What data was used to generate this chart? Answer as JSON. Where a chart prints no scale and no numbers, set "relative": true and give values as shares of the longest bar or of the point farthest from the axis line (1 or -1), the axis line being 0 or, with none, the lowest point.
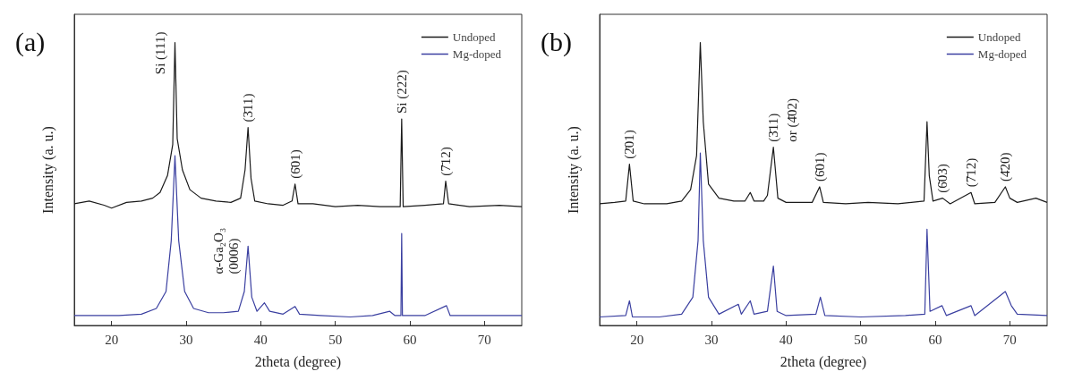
{
  "chart_data": [
    {
      "type": "line",
      "title": "(a)",
      "xlabel": "2theta (degree)",
      "ylabel": "Intensity (a. u.)",
      "xlim": [
        15,
        75
      ],
      "xticks": [
        20,
        30,
        40,
        50,
        60,
        70
      ],
      "relative": true,
      "legend": "top right",
      "marker": "none",
      "grid": false,
      "series": [
        {
          "name": "Undoped",
          "color": "#1a1a1a",
          "x": [
            15,
            17,
            19,
            20,
            22,
            24,
            25.5,
            26.5,
            27.5,
            28.2,
            28.5,
            28.8,
            29.5,
            30.5,
            32,
            34,
            36,
            37.3,
            37.9,
            38.3,
            38.7,
            39.2,
            41,
            43,
            44.2,
            44.6,
            45,
            47,
            50,
            53,
            56,
            58.7,
            58.9,
            59.1,
            62,
            64.5,
            64.8,
            65.2,
            68,
            72,
            75
          ],
          "values": [
            0.43,
            0.44,
            0.425,
            0.415,
            0.435,
            0.44,
            0.45,
            0.47,
            0.53,
            0.64,
            1.0,
            0.66,
            0.55,
            0.48,
            0.45,
            0.44,
            0.435,
            0.45,
            0.55,
            0.7,
            0.52,
            0.44,
            0.43,
            0.425,
            0.44,
            0.5,
            0.43,
            0.43,
            0.42,
            0.425,
            0.42,
            0.42,
            0.73,
            0.42,
            0.425,
            0.43,
            0.51,
            0.43,
            0.42,
            0.425,
            0.42
          ]
        },
        {
          "name": "Mg-doped",
          "color": "#3a3fa0",
          "x": [
            15,
            18,
            21,
            24,
            26,
            27.3,
            28,
            28.5,
            29,
            29.8,
            31,
            33,
            35,
            37,
            37.8,
            38.3,
            38.8,
            39.5,
            40.5,
            41.2,
            43,
            44.6,
            45.2,
            48,
            52,
            55,
            57.3,
            58,
            58.8,
            58.9,
            59,
            62,
            64.9,
            65.4,
            70,
            75
          ],
          "values": [
            0.035,
            0.035,
            0.035,
            0.04,
            0.06,
            0.12,
            0.3,
            0.6,
            0.3,
            0.12,
            0.06,
            0.045,
            0.045,
            0.05,
            0.12,
            0.28,
            0.1,
            0.05,
            0.08,
            0.05,
            0.04,
            0.067,
            0.04,
            0.035,
            0.03,
            0.035,
            0.05,
            0.035,
            0.035,
            0.325,
            0.035,
            0.035,
            0.07,
            0.035,
            0.035,
            0.035
          ]
        }
      ],
      "annotations": [
        {
          "text": "Si (111)",
          "x": 28.5,
          "y": 1.0
        },
        {
          "text": "(3̄11)",
          "x": 38.3,
          "y": 0.7
        },
        {
          "text": "(6̄01)",
          "x": 44.6,
          "y": 0.5
        },
        {
          "text": "Si (222)",
          "x": 58.9,
          "y": 0.73
        },
        {
          "text": "(7̄12)",
          "x": 64.8,
          "y": 0.51
        },
        {
          "text": "α-Ga₂O₃\n(0006)",
          "x": 38.3,
          "y": 0.28
        }
      ]
    },
    {
      "type": "line",
      "title": "(b)",
      "xlabel": "2theta (degree)",
      "ylabel": "Intensity (a. u.)",
      "xlim": [
        15,
        75
      ],
      "xticks": [
        20,
        30,
        40,
        50,
        60,
        70
      ],
      "relative": true,
      "legend": "top right",
      "marker": "none",
      "grid": false,
      "series": [
        {
          "name": "Undoped",
          "color": "#1a1a1a",
          "x": [
            15,
            17,
            18.5,
            19,
            19.5,
            21,
            24,
            26,
            27.2,
            28,
            28.5,
            28.9,
            29.6,
            31,
            33,
            34.5,
            35.2,
            35.7,
            37,
            37.5,
            38.3,
            38.9,
            40,
            43.5,
            44.5,
            45,
            48,
            51,
            55,
            58.5,
            58.9,
            59.2,
            59.7,
            61,
            62,
            64.8,
            65.3,
            68,
            69.4,
            70,
            71,
            73.5,
            75
          ],
          "values": [
            0.43,
            0.435,
            0.44,
            0.57,
            0.44,
            0.43,
            0.43,
            0.44,
            0.48,
            0.6,
            1.0,
            0.72,
            0.5,
            0.45,
            0.44,
            0.44,
            0.47,
            0.44,
            0.44,
            0.46,
            0.63,
            0.45,
            0.435,
            0.435,
            0.49,
            0.435,
            0.43,
            0.435,
            0.43,
            0.44,
            0.72,
            0.53,
            0.44,
            0.45,
            0.43,
            0.47,
            0.43,
            0.435,
            0.49,
            0.45,
            0.435,
            0.45,
            0.435
          ]
        },
        {
          "name": "Mg-doped",
          "color": "#3a3fa0",
          "x": [
            15,
            18.5,
            19,
            19.4,
            23,
            26,
            27.5,
            28.2,
            28.5,
            28.9,
            29.6,
            30.3,
            31,
            33.6,
            34,
            35.2,
            35.7,
            37.5,
            38.3,
            38.8,
            40,
            44,
            44.6,
            45.2,
            50,
            56,
            58.6,
            58.9,
            59.3,
            60.9,
            61.5,
            64.8,
            65.3,
            69.4,
            70.2,
            71,
            75
          ],
          "values": [
            0.03,
            0.035,
            0.087,
            0.03,
            0.03,
            0.04,
            0.1,
            0.3,
            0.61,
            0.3,
            0.1,
            0.07,
            0.04,
            0.075,
            0.04,
            0.087,
            0.04,
            0.05,
            0.21,
            0.05,
            0.035,
            0.04,
            0.1,
            0.035,
            0.03,
            0.035,
            0.04,
            0.34,
            0.05,
            0.07,
            0.035,
            0.07,
            0.035,
            0.12,
            0.07,
            0.04,
            0.035
          ]
        }
      ],
      "annotations": [
        {
          "text": "(2̄01)",
          "x": 19,
          "y": 0.57
        },
        {
          "text": "(3̄11)",
          "x": 38.3,
          "y": 0.63
        },
        {
          "text": "or (4̄02)",
          "x": 38.3,
          "y": 0.63
        },
        {
          "text": "(6̄01)",
          "x": 44.5,
          "y": 0.49
        },
        {
          "text": "(6̄03)",
          "x": 61,
          "y": 0.45
        },
        {
          "text": "(7̄12)",
          "x": 64.8,
          "y": 0.47
        },
        {
          "text": "(4̄20)",
          "x": 69.4,
          "y": 0.49
        }
      ]
    }
  ]
}
